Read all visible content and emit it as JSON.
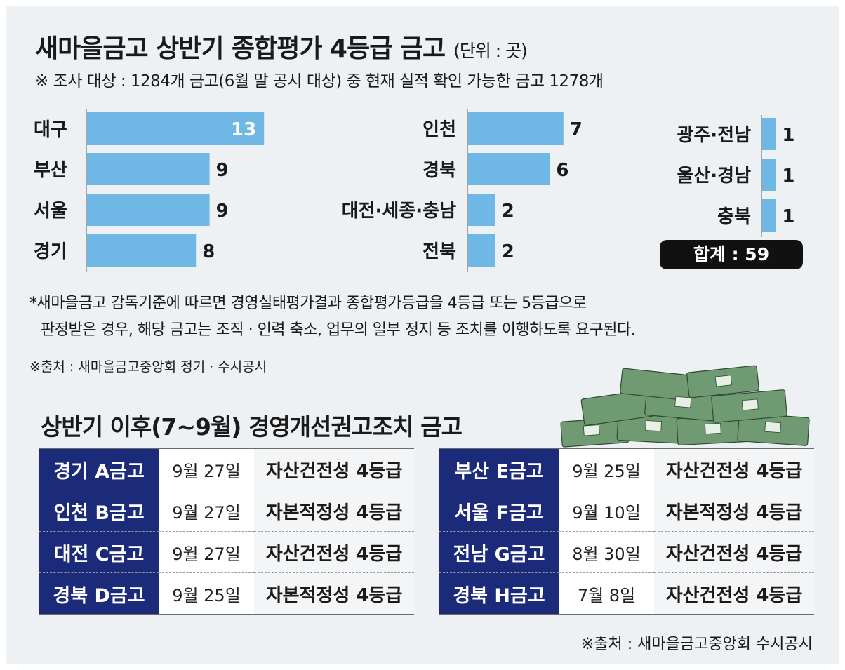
{
  "header": {
    "title": "새마을금고 상반기 종합평가 4등급 금고",
    "unit": "(단위 : 곳)",
    "subtitle": "※ 조사 대상 : 1284개 금고(6월 말 공시 대상) 중 현재 실적 확인 가능한 금고 1278개"
  },
  "chart_data": {
    "type": "bar",
    "orientation": "horizontal",
    "categories": [
      "대구",
      "부산",
      "서울",
      "경기",
      "인천",
      "경북",
      "대전·세종·충남",
      "전북",
      "광주·전남",
      "울산·경남",
      "충북"
    ],
    "values": [
      13,
      9,
      9,
      8,
      7,
      6,
      2,
      2,
      1,
      1,
      1
    ],
    "groups": [
      {
        "categories": [
          "대구",
          "부산",
          "서울",
          "경기"
        ],
        "values": [
          13,
          9,
          9,
          8
        ]
      },
      {
        "categories": [
          "인천",
          "경북",
          "대전·세종·충남",
          "전북"
        ],
        "values": [
          7,
          6,
          2,
          2
        ]
      },
      {
        "categories": [
          "광주·전남",
          "울산·경남",
          "충북"
        ],
        "values": [
          1,
          1,
          1
        ]
      }
    ],
    "title": "새마을금고 상반기 종합평가 4등급 금고",
    "xlabel": "",
    "ylabel": "",
    "bar_color": "#6fb8e6"
  },
  "total_label": "합계 : 59",
  "notes": {
    "line1": "*새마을금고 감독기준에 따르면 경영실태평가결과 종합평가등급을 4등급 또는 5등급으로",
    "line2": "판정받은 경우, 해당 금고는 조직 · 인력 축소, 업무의 일부 정지 등 조치를 이행하도록 요구된다.",
    "source": "※출처 : 새마을금고중앙회 정기 · 수시공시"
  },
  "section2": {
    "title": "상반기 이후(7~9월) 경영개선권고조치 금고",
    "left_rows": [
      {
        "name": "경기 A금고",
        "date": "9월 27일",
        "grade": "자산건전성 4등급"
      },
      {
        "name": "인천 B금고",
        "date": "9월 27일",
        "grade": "자본적정성 4등급"
      },
      {
        "name": "대전 C금고",
        "date": "9월 27일",
        "grade": "자산건전성 4등급"
      },
      {
        "name": "경북 D금고",
        "date": "9월 25일",
        "grade": "자본적정성 4등급"
      }
    ],
    "right_rows": [
      {
        "name": "부산 E금고",
        "date": "9월 25일",
        "grade": "자산건전성 4등급"
      },
      {
        "name": "서울 F금고",
        "date": "9월 10일",
        "grade": "자본적정성 4등급"
      },
      {
        "name": "전남 G금고",
        "date": "8월 30일",
        "grade": "자산건전성 4등급"
      },
      {
        "name": "경북 H금고",
        "date": "7월 8일",
        "grade": "자산건전성 4등급"
      }
    ],
    "source": "※출처 : 새마을금고중앙회 수시공시"
  },
  "colors": {
    "name_cell_bg": "#1c2a7a",
    "bar": "#6fb8e6",
    "panel_bg": "#eef1f4"
  }
}
